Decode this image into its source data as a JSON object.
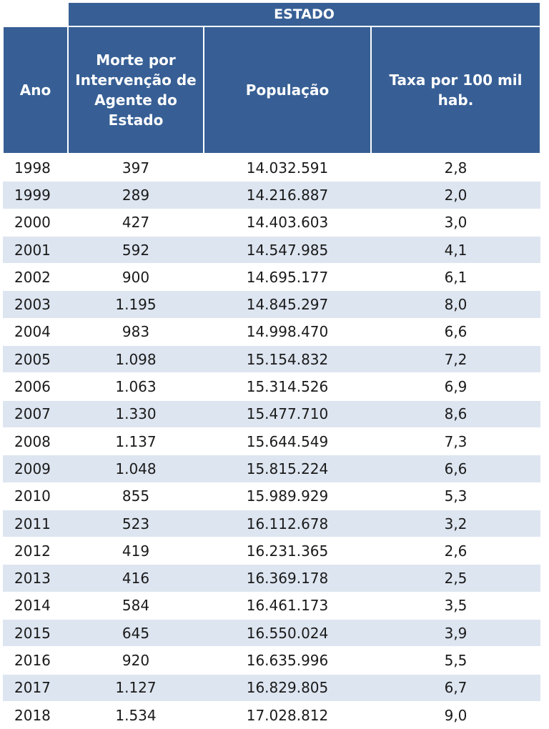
{
  "group_header": "ESTADO",
  "columns": {
    "ano": "Ano",
    "mortes": "Morte por Intervenção de Agente do Estado",
    "populacao": "População",
    "taxa": "Taxa por 100 mil hab."
  },
  "rows": [
    {
      "ano": "1998",
      "mortes": "397",
      "populacao": "14.032.591",
      "taxa": "2,8"
    },
    {
      "ano": "1999",
      "mortes": "289",
      "populacao": "14.216.887",
      "taxa": "2,0"
    },
    {
      "ano": "2000",
      "mortes": "427",
      "populacao": "14.403.603",
      "taxa": "3,0"
    },
    {
      "ano": "2001",
      "mortes": "592",
      "populacao": "14.547.985",
      "taxa": "4,1"
    },
    {
      "ano": "2002",
      "mortes": "900",
      "populacao": "14.695.177",
      "taxa": "6,1"
    },
    {
      "ano": "2003",
      "mortes": "1.195",
      "populacao": "14.845.297",
      "taxa": "8,0"
    },
    {
      "ano": "2004",
      "mortes": "983",
      "populacao": "14.998.470",
      "taxa": "6,6"
    },
    {
      "ano": "2005",
      "mortes": "1.098",
      "populacao": "15.154.832",
      "taxa": "7,2"
    },
    {
      "ano": "2006",
      "mortes": "1.063",
      "populacao": "15.314.526",
      "taxa": "6,9"
    },
    {
      "ano": "2007",
      "mortes": "1.330",
      "populacao": "15.477.710",
      "taxa": "8,6"
    },
    {
      "ano": "2008",
      "mortes": "1.137",
      "populacao": "15.644.549",
      "taxa": "7,3"
    },
    {
      "ano": "2009",
      "mortes": "1.048",
      "populacao": "15.815.224",
      "taxa": "6,6"
    },
    {
      "ano": "2010",
      "mortes": "855",
      "populacao": "15.989.929",
      "taxa": "5,3"
    },
    {
      "ano": "2011",
      "mortes": "523",
      "populacao": "16.112.678",
      "taxa": "3,2"
    },
    {
      "ano": "2012",
      "mortes": "419",
      "populacao": "16.231.365",
      "taxa": "2,6"
    },
    {
      "ano": "2013",
      "mortes": "416",
      "populacao": "16.369.178",
      "taxa": "2,5"
    },
    {
      "ano": "2014",
      "mortes": "584",
      "populacao": "16.461.173",
      "taxa": "3,5"
    },
    {
      "ano": "2015",
      "mortes": "645",
      "populacao": "16.550.024",
      "taxa": "3,9"
    },
    {
      "ano": "2016",
      "mortes": "920",
      "populacao": "16.635.996",
      "taxa": "5,5"
    },
    {
      "ano": "2017",
      "mortes": "1.127",
      "populacao": "16.829.805",
      "taxa": "6,7"
    },
    {
      "ano": "2018",
      "mortes": "1.534",
      "populacao": "17.028.812",
      "taxa": "9,0"
    }
  ],
  "colors": {
    "header_bg": "#375f95",
    "header_text": "#ffffff",
    "band_bg": "#dde5f0"
  }
}
